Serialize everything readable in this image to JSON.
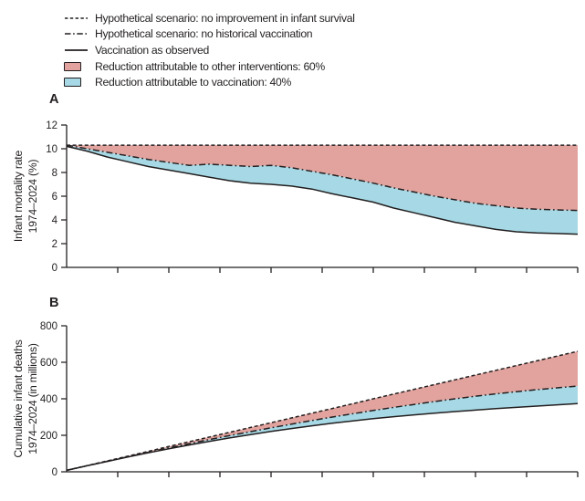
{
  "colors": {
    "line": "#231f20",
    "pink": "#e2a39e",
    "blue": "#a6d9e5",
    "text": "#231f20"
  },
  "legend": {
    "items": [
      {
        "label": "Hypothetical scenario: no improvement in infant survival",
        "marker": "dashed-line"
      },
      {
        "label": "Hypothetical scenario: no historical vaccination",
        "marker": "dashdot-line"
      },
      {
        "label": "Vaccination as observed",
        "marker": "solid-line"
      },
      {
        "label": "Reduction attributable to other interventions: 60%",
        "marker": "swatch",
        "color": "#e2a39e"
      },
      {
        "label": "Reduction attributable to vaccination: 40%",
        "marker": "swatch",
        "color": "#a6d9e5"
      }
    ]
  },
  "chart_data": [
    {
      "panel": "A",
      "type": "area",
      "ylabel_line1": "Infant mortality rate",
      "ylabel_line2": "1974–2024 (%)",
      "ylim": [
        0,
        12
      ],
      "yticks": [
        0,
        2,
        4,
        6,
        8,
        10,
        12
      ],
      "xlim": [
        1974,
        2024
      ],
      "xticks": [
        1979,
        1984,
        1989,
        1994,
        1999,
        2004,
        2009,
        2014,
        2019,
        2024
      ],
      "xtick_labels_shown": false,
      "grid": false,
      "x": [
        1974,
        1976,
        1978,
        1980,
        1982,
        1984,
        1986,
        1988,
        1990,
        1992,
        1994,
        1996,
        1998,
        2000,
        2002,
        2004,
        2006,
        2008,
        2010,
        2012,
        2014,
        2016,
        2018,
        2020,
        2022,
        2024
      ],
      "series": [
        {
          "name": "Hypothetical scenario: no improvement in infant survival",
          "style": "dashed",
          "values": [
            10.3,
            10.3,
            10.3,
            10.3,
            10.3,
            10.3,
            10.3,
            10.3,
            10.3,
            10.3,
            10.3,
            10.3,
            10.3,
            10.3,
            10.3,
            10.3,
            10.3,
            10.3,
            10.3,
            10.3,
            10.3,
            10.3,
            10.3,
            10.3,
            10.3,
            10.3
          ]
        },
        {
          "name": "Hypothetical scenario: no historical vaccination",
          "style": "dashdot",
          "values": [
            10.3,
            10.0,
            9.7,
            9.4,
            9.1,
            8.85,
            8.6,
            8.7,
            8.6,
            8.5,
            8.6,
            8.4,
            8.1,
            7.8,
            7.45,
            7.1,
            6.7,
            6.35,
            6.0,
            5.7,
            5.4,
            5.2,
            5.0,
            4.9,
            4.85,
            4.8
          ]
        },
        {
          "name": "Vaccination as observed",
          "style": "solid",
          "values": [
            10.2,
            9.8,
            9.3,
            8.9,
            8.5,
            8.2,
            7.9,
            7.6,
            7.3,
            7.1,
            7.0,
            6.85,
            6.6,
            6.2,
            5.85,
            5.5,
            5.0,
            4.6,
            4.2,
            3.8,
            3.5,
            3.2,
            3.0,
            2.9,
            2.85,
            2.8
          ]
        }
      ],
      "bands": [
        {
          "label": "Reduction attributable to other interventions: 60%",
          "between": [
            0,
            1
          ],
          "color": "#e2a39e"
        },
        {
          "label": "Reduction attributable to vaccination: 40%",
          "between": [
            1,
            2
          ],
          "color": "#a6d9e5"
        }
      ]
    },
    {
      "panel": "B",
      "type": "area",
      "ylabel_line1": "Cumulative infant deaths",
      "ylabel_line2": "1974–2024 (in millions)",
      "ylim": [
        0,
        800
      ],
      "yticks": [
        0,
        200,
        400,
        600,
        800
      ],
      "xlim": [
        1974,
        2024
      ],
      "xticks": [
        1979,
        1984,
        1989,
        1994,
        1999,
        2004,
        2009,
        2014,
        2019,
        2024
      ],
      "xtick_labels_shown": false,
      "grid": false,
      "x": [
        1974,
        1976,
        1978,
        1980,
        1982,
        1984,
        1986,
        1988,
        1990,
        1992,
        1994,
        1996,
        1998,
        2000,
        2002,
        2004,
        2006,
        2008,
        2010,
        2012,
        2014,
        2016,
        2018,
        2020,
        2022,
        2024
      ],
      "series": [
        {
          "name": "Hypothetical scenario: no improvement in infant survival",
          "style": "dashed",
          "values": [
            8,
            34,
            60,
            86,
            112,
            139,
            165,
            191,
            217,
            243,
            269,
            295,
            321,
            347,
            373,
            400,
            426,
            452,
            478,
            504,
            530,
            556,
            582,
            608,
            634,
            660
          ]
        },
        {
          "name": "Hypothetical scenario: no historical vaccination",
          "style": "dashdot",
          "values": [
            8,
            33,
            58,
            83,
            107,
            131,
            154,
            177,
            199,
            220,
            241,
            261,
            281,
            300,
            318,
            336,
            353,
            369,
            385,
            400,
            414,
            427,
            439,
            450,
            460,
            470
          ]
        },
        {
          "name": "Vaccination as observed",
          "style": "solid",
          "values": [
            8,
            33,
            57,
            81,
            104,
            126,
            147,
            167,
            186,
            204,
            221,
            237,
            252,
            266,
            279,
            291,
            302,
            312,
            321,
            330,
            338,
            346,
            353,
            360,
            367,
            374
          ]
        }
      ],
      "bands": [
        {
          "label": "Reduction attributable to other interventions: 60%",
          "between": [
            0,
            1
          ],
          "color": "#e2a39e"
        },
        {
          "label": "Reduction attributable to vaccination: 40%",
          "between": [
            1,
            2
          ],
          "color": "#a6d9e5"
        }
      ]
    }
  ]
}
